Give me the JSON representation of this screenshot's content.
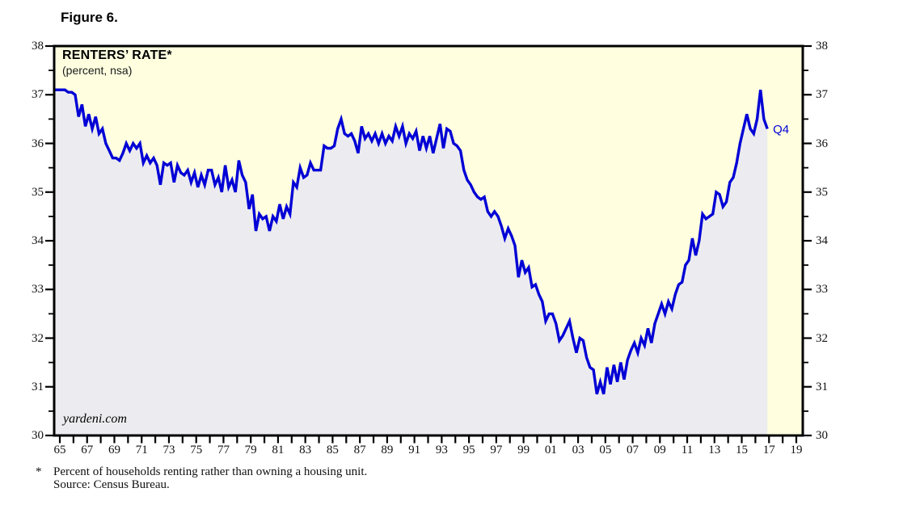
{
  "figure_label": "Figure 6.",
  "chart": {
    "title": "RENTERS’ RATE*",
    "subtitle": "(percent, nsa)",
    "watermark": "yardeni.com",
    "end_label": "Q4",
    "colors": {
      "line": "#0000d6",
      "plot_bg": "#ffffe0",
      "area_fill": "#ececf0",
      "frame": "#000000",
      "end_label_color": "#0000d6"
    }
  },
  "footnote": {
    "marker": "*",
    "line1": "Percent of households renting rather than owning a housing unit.",
    "line2": "Source: Census Bureau."
  },
  "chart_data": {
    "type": "area",
    "title": "RENTERS’ RATE*",
    "subtitle": "(percent, nsa)",
    "xlabel": "",
    "ylabel": "percent",
    "frequency": "quarterly",
    "x_start_year": 1965,
    "x_end_year_axis": 2019,
    "last_point": {
      "label": "Q4",
      "period": "2016 Q4",
      "value": 36.3
    },
    "ylim": [
      30,
      38
    ],
    "y_ticks": [
      "30",
      "31",
      "32",
      "33",
      "34",
      "35",
      "36",
      "37",
      "38"
    ],
    "y_minor_step": 0.5,
    "y_axis_sides": [
      "left",
      "right"
    ],
    "grid": false,
    "legend": "none",
    "x_tick_labels": [
      "65",
      "67",
      "69",
      "71",
      "73",
      "75",
      "77",
      "79",
      "81",
      "83",
      "85",
      "87",
      "89",
      "91",
      "93",
      "95",
      "97",
      "99",
      "01",
      "03",
      "05",
      "07",
      "09",
      "11",
      "13",
      "15",
      "17",
      "19"
    ],
    "values_start": "1965Q1",
    "values": [
      37.1,
      37.1,
      37.05,
      37.05,
      37.0,
      36.55,
      36.8,
      36.35,
      36.6,
      36.3,
      36.55,
      36.2,
      36.3,
      36.0,
      35.85,
      35.7,
      35.7,
      35.65,
      35.8,
      36.0,
      35.85,
      36.0,
      35.9,
      36.0,
      35.6,
      35.75,
      35.6,
      35.7,
      35.55,
      35.15,
      35.6,
      35.55,
      35.6,
      35.2,
      35.55,
      35.4,
      35.35,
      35.45,
      35.2,
      35.4,
      35.1,
      35.35,
      35.15,
      35.45,
      35.45,
      35.15,
      35.3,
      35.0,
      35.55,
      35.1,
      35.25,
      35.0,
      35.65,
      35.35,
      35.2,
      34.65,
      34.95,
      34.2,
      34.55,
      34.45,
      34.5,
      34.2,
      34.5,
      34.4,
      34.75,
      34.45,
      34.7,
      34.55,
      35.2,
      35.1,
      35.5,
      35.3,
      35.35,
      35.6,
      35.45,
      35.45,
      35.45,
      35.95,
      35.9,
      35.9,
      35.95,
      36.3,
      36.5,
      36.2,
      36.15,
      36.2,
      36.05,
      35.8,
      36.35,
      36.1,
      36.2,
      36.05,
      36.2,
      36.0,
      36.2,
      36.0,
      36.15,
      36.05,
      36.35,
      36.15,
      36.35,
      36.0,
      36.2,
      36.1,
      36.25,
      35.85,
      36.15,
      35.9,
      36.15,
      35.8,
      36.1,
      36.4,
      35.9,
      36.3,
      36.25,
      36.0,
      35.95,
      35.85,
      35.45,
      35.25,
      35.15,
      35.0,
      34.9,
      34.85,
      34.9,
      34.6,
      34.5,
      34.6,
      34.5,
      34.3,
      34.05,
      34.25,
      34.1,
      33.9,
      33.25,
      33.6,
      33.35,
      33.45,
      33.05,
      33.1,
      32.9,
      32.75,
      32.35,
      32.5,
      32.5,
      32.3,
      31.95,
      32.05,
      32.2,
      32.35,
      32.0,
      31.7,
      32.0,
      31.95,
      31.6,
      31.4,
      31.35,
      30.85,
      31.1,
      30.85,
      31.4,
      31.05,
      31.45,
      31.1,
      31.5,
      31.15,
      31.55,
      31.75,
      31.9,
      31.7,
      32.0,
      31.85,
      32.2,
      31.9,
      32.3,
      32.5,
      32.7,
      32.5,
      32.75,
      32.6,
      32.9,
      33.1,
      33.15,
      33.5,
      33.6,
      34.05,
      33.7,
      34.0,
      34.55,
      34.45,
      34.5,
      34.55,
      35.0,
      34.95,
      34.7,
      34.8,
      35.2,
      35.3,
      35.6,
      36.0,
      36.3,
      36.6,
      36.3,
      36.2,
      36.5,
      37.1,
      36.5,
      36.3
    ]
  }
}
